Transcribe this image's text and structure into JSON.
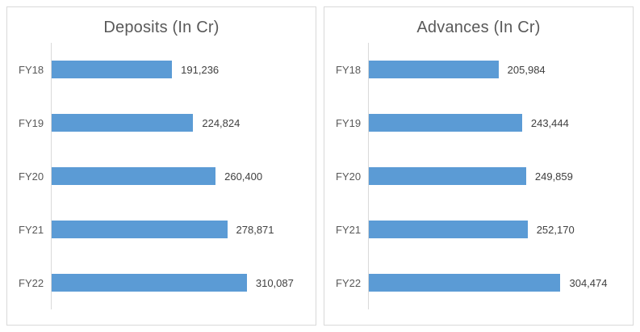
{
  "colors": {
    "bar": "#5B9BD5",
    "title_text": "#595959",
    "category_text": "#595959",
    "value_text": "#404040",
    "card_border": "#D9D9D9",
    "axis_line": "#D9D9D9",
    "background": "#FFFFFF"
  },
  "chart_data": [
    {
      "type": "bar",
      "orientation": "horizontal",
      "title": "Deposits (In Cr)",
      "categories": [
        "FY18",
        "FY19",
        "FY20",
        "FY21",
        "FY22"
      ],
      "values": [
        191236,
        224824,
        260400,
        278871,
        310087
      ],
      "value_labels": [
        "191,236",
        "224,824",
        "260,400",
        "278,871",
        "310,087"
      ],
      "xlabel": "",
      "ylabel": "",
      "xlim": [
        0,
        350000
      ],
      "grid": false,
      "legend": false,
      "data_labels": "outside-end"
    },
    {
      "type": "bar",
      "orientation": "horizontal",
      "title": "Advances (In Cr)",
      "categories": [
        "FY18",
        "FY19",
        "FY20",
        "FY21",
        "FY22"
      ],
      "values": [
        205984,
        243444,
        249859,
        252170,
        304474
      ],
      "value_labels": [
        "205,984",
        "243,444",
        "249,859",
        "252,170",
        "304,474"
      ],
      "xlabel": "",
      "ylabel": "",
      "xlim": [
        0,
        350000
      ],
      "grid": false,
      "legend": false,
      "data_labels": "outside-end"
    }
  ]
}
